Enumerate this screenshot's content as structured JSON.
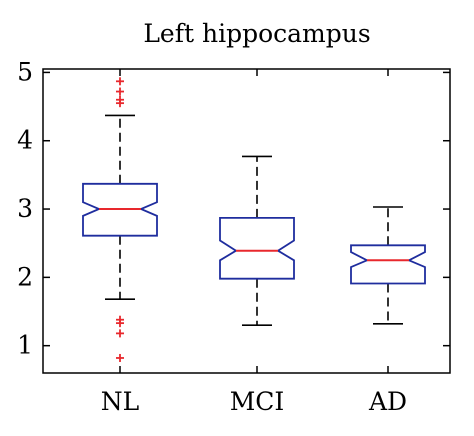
{
  "chart_data": {
    "type": "box",
    "title": "Left hippocampus",
    "xlabel": "",
    "ylabel": "",
    "ylim": [
      0.6,
      5.05
    ],
    "yticks": [
      1,
      2,
      3,
      4,
      5
    ],
    "categories": [
      "NL",
      "MCI",
      "AD"
    ],
    "notched": true,
    "boxes": [
      {
        "label": "NL",
        "whisker_low": 1.68,
        "q1": 2.61,
        "notch_low": 2.9,
        "median": 3.0,
        "notch_high": 3.1,
        "q3": 3.37,
        "whisker_high": 4.37,
        "outliers": [
          4.87,
          4.72,
          4.6,
          4.55,
          1.38,
          1.33,
          1.18,
          0.82
        ]
      },
      {
        "label": "MCI",
        "whisker_low": 1.3,
        "q1": 1.98,
        "notch_low": 2.25,
        "median": 2.39,
        "notch_high": 2.54,
        "q3": 2.87,
        "whisker_high": 3.77,
        "outliers": []
      },
      {
        "label": "AD",
        "whisker_low": 1.32,
        "q1": 1.91,
        "notch_low": 2.15,
        "median": 2.25,
        "notch_high": 2.37,
        "q3": 2.47,
        "whisker_high": 3.03,
        "outliers": []
      }
    ],
    "colors": {
      "box": "#1f2d9e",
      "median": "#e8282d",
      "outlier": "#e8282d",
      "whisker": "#000000",
      "axes": "#000000"
    },
    "grid": false,
    "legend": "none"
  }
}
